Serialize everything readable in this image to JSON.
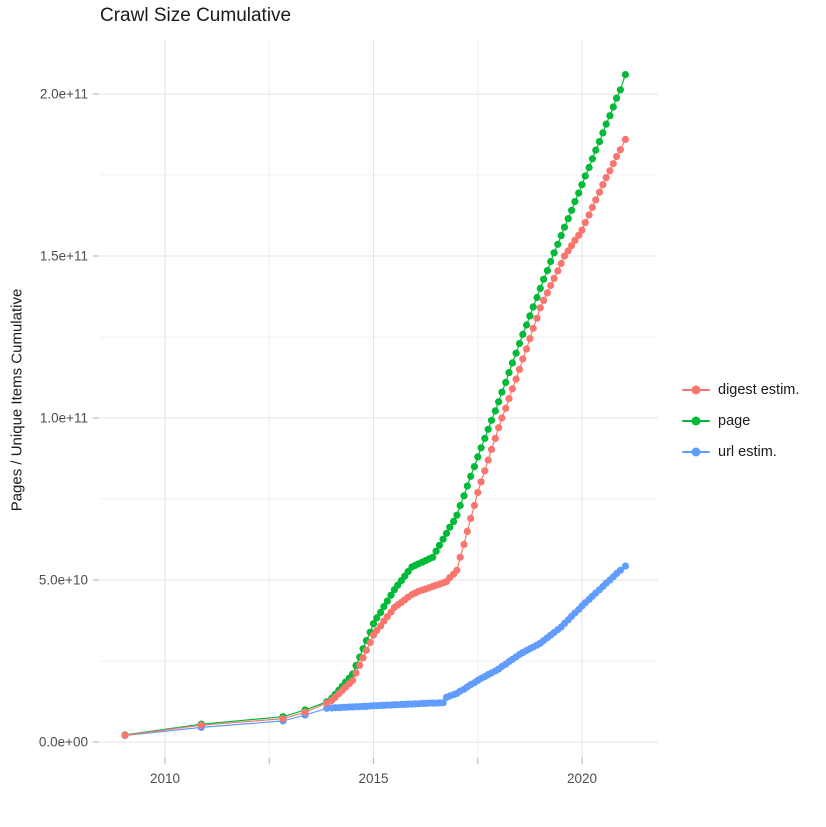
{
  "title": "Crawl Size Cumulative",
  "y_axis": {
    "title": "Pages / Unique Items Cumulative",
    "tick_labels": [
      "0.0e+00",
      "5.0e+10",
      "1.0e+11",
      "1.5e+11",
      "2.0e+11"
    ],
    "tick_values_e9": [
      0,
      50,
      100,
      150,
      200
    ],
    "minor_values_e9": [
      25,
      75,
      125,
      175
    ]
  },
  "x_axis": {
    "tick_labels": [
      "2010",
      "2015",
      "2020"
    ],
    "tick_values": [
      2010,
      2015,
      2020
    ],
    "minor_values": [
      2012.5,
      2017.5
    ]
  },
  "legend": {
    "items": [
      {
        "label": "digest estim.",
        "color": "#F8766D"
      },
      {
        "label": "page",
        "color": "#00BA38"
      },
      {
        "label": "url estim.",
        "color": "#619CFF"
      }
    ]
  },
  "style_colors": {
    "grid_major": "#E3E3E3",
    "grid_minor": "#F0F0F0",
    "tick_mark": "#BEBEBE",
    "tick_label": "#4D4D4D",
    "text": "#1A1A1A"
  },
  "chart_data": {
    "type": "line",
    "title": "Crawl Size Cumulative",
    "xlabel": "",
    "ylabel": "Pages / Unique Items Cumulative",
    "x_unit": "year",
    "y_unit": "count (values in billions, 1e9)",
    "xlim": [
      2008.4,
      2021.8
    ],
    "ylim_e9": [
      -5,
      216
    ],
    "grid": true,
    "legend_position": "right",
    "series": [
      {
        "name": "url estim.",
        "color": "#619CFF",
        "points": [
          [
            2009.04,
            2.0
          ],
          [
            2010.87,
            4.5
          ],
          [
            2012.83,
            6.5
          ],
          [
            2013.36,
            8.3
          ],
          [
            2013.88,
            10.4
          ],
          [
            2014.0,
            10.5
          ],
          [
            2014.08,
            10.6
          ],
          [
            2014.17,
            10.6
          ],
          [
            2014.25,
            10.7
          ],
          [
            2014.33,
            10.7
          ],
          [
            2014.42,
            10.8
          ],
          [
            2014.5,
            10.8
          ],
          [
            2014.58,
            10.9
          ],
          [
            2014.67,
            10.9
          ],
          [
            2014.75,
            11.0
          ],
          [
            2014.83,
            11.0
          ],
          [
            2014.92,
            11.1
          ],
          [
            2015.0,
            11.2
          ],
          [
            2015.08,
            11.2
          ],
          [
            2015.17,
            11.3
          ],
          [
            2015.25,
            11.3
          ],
          [
            2015.33,
            11.4
          ],
          [
            2015.42,
            11.4
          ],
          [
            2015.5,
            11.5
          ],
          [
            2015.58,
            11.5
          ],
          [
            2015.67,
            11.6
          ],
          [
            2015.75,
            11.6
          ],
          [
            2015.83,
            11.7
          ],
          [
            2015.92,
            11.7
          ],
          [
            2016.0,
            11.8
          ],
          [
            2016.08,
            11.8
          ],
          [
            2016.17,
            11.9
          ],
          [
            2016.25,
            11.9
          ],
          [
            2016.33,
            12.0
          ],
          [
            2016.42,
            12.0
          ],
          [
            2016.5,
            12.0
          ],
          [
            2016.58,
            12.1
          ],
          [
            2016.67,
            12.1
          ],
          [
            2016.75,
            13.8
          ],
          [
            2016.83,
            14.2
          ],
          [
            2016.92,
            14.6
          ],
          [
            2017.0,
            15.0
          ],
          [
            2017.08,
            15.7
          ],
          [
            2017.17,
            16.3
          ],
          [
            2017.25,
            17.0
          ],
          [
            2017.33,
            17.7
          ],
          [
            2017.42,
            18.3
          ],
          [
            2017.5,
            19.0
          ],
          [
            2017.58,
            19.6
          ],
          [
            2017.67,
            20.2
          ],
          [
            2017.75,
            20.8
          ],
          [
            2017.83,
            21.3
          ],
          [
            2017.92,
            21.9
          ],
          [
            2018.0,
            22.5
          ],
          [
            2018.08,
            23.3
          ],
          [
            2018.17,
            24.0
          ],
          [
            2018.25,
            24.8
          ],
          [
            2018.33,
            25.5
          ],
          [
            2018.42,
            26.3
          ],
          [
            2018.5,
            27.0
          ],
          [
            2018.58,
            27.6
          ],
          [
            2018.67,
            28.2
          ],
          [
            2018.75,
            28.8
          ],
          [
            2018.83,
            29.3
          ],
          [
            2018.92,
            29.9
          ],
          [
            2019.0,
            30.5
          ],
          [
            2019.08,
            31.3
          ],
          [
            2019.17,
            32.2
          ],
          [
            2019.25,
            33.0
          ],
          [
            2019.33,
            33.8
          ],
          [
            2019.42,
            34.7
          ],
          [
            2019.5,
            35.5
          ],
          [
            2019.58,
            36.6
          ],
          [
            2019.67,
            37.7
          ],
          [
            2019.75,
            38.8
          ],
          [
            2019.83,
            39.8
          ],
          [
            2019.92,
            40.9
          ],
          [
            2020.0,
            42.0
          ],
          [
            2020.08,
            43.0
          ],
          [
            2020.17,
            44.0
          ],
          [
            2020.25,
            45.0
          ],
          [
            2020.33,
            46.0
          ],
          [
            2020.42,
            47.0
          ],
          [
            2020.5,
            48.0
          ],
          [
            2020.58,
            49.0
          ],
          [
            2020.67,
            50.0
          ],
          [
            2020.75,
            51.0
          ],
          [
            2020.83,
            52.0
          ],
          [
            2020.92,
            53.0
          ],
          [
            2021.04,
            54.3
          ]
        ]
      },
      {
        "name": "page",
        "color": "#00BA38",
        "points": [
          [
            2009.04,
            2.2
          ],
          [
            2010.87,
            5.5
          ],
          [
            2012.83,
            7.8
          ],
          [
            2013.36,
            9.9
          ],
          [
            2013.88,
            12.4
          ],
          [
            2014.0,
            13.5
          ],
          [
            2014.08,
            14.7
          ],
          [
            2014.17,
            16.0
          ],
          [
            2014.25,
            17.2
          ],
          [
            2014.33,
            18.5
          ],
          [
            2014.42,
            19.7
          ],
          [
            2014.5,
            21.0
          ],
          [
            2014.58,
            23.6
          ],
          [
            2014.67,
            26.2
          ],
          [
            2014.75,
            28.8
          ],
          [
            2014.83,
            31.3
          ],
          [
            2014.92,
            33.9
          ],
          [
            2015.0,
            36.5
          ],
          [
            2015.08,
            38.3
          ],
          [
            2015.17,
            40.0
          ],
          [
            2015.25,
            41.8
          ],
          [
            2015.33,
            43.5
          ],
          [
            2015.42,
            45.3
          ],
          [
            2015.5,
            47.0
          ],
          [
            2015.58,
            48.4
          ],
          [
            2015.67,
            49.8
          ],
          [
            2015.75,
            51.2
          ],
          [
            2015.83,
            52.6
          ],
          [
            2015.92,
            54.0
          ],
          [
            2016.0,
            54.5
          ],
          [
            2016.08,
            55.0
          ],
          [
            2016.17,
            55.5
          ],
          [
            2016.25,
            56.0
          ],
          [
            2016.33,
            56.5
          ],
          [
            2016.42,
            57.0
          ],
          [
            2016.5,
            58.9
          ],
          [
            2016.58,
            60.7
          ],
          [
            2016.67,
            62.6
          ],
          [
            2016.75,
            64.4
          ],
          [
            2016.83,
            66.3
          ],
          [
            2016.92,
            68.1
          ],
          [
            2017.0,
            70.0
          ],
          [
            2017.08,
            73.0
          ],
          [
            2017.17,
            76.0
          ],
          [
            2017.25,
            79.0
          ],
          [
            2017.33,
            82.0
          ],
          [
            2017.42,
            85.0
          ],
          [
            2017.5,
            88.0
          ],
          [
            2017.58,
            90.8
          ],
          [
            2017.67,
            93.7
          ],
          [
            2017.75,
            96.5
          ],
          [
            2017.83,
            99.3
          ],
          [
            2017.92,
            102.2
          ],
          [
            2018.0,
            105.0
          ],
          [
            2018.08,
            108.0
          ],
          [
            2018.17,
            111.0
          ],
          [
            2018.25,
            114.0
          ],
          [
            2018.33,
            117.0
          ],
          [
            2018.42,
            120.0
          ],
          [
            2018.5,
            123.0
          ],
          [
            2018.58,
            125.8
          ],
          [
            2018.67,
            128.7
          ],
          [
            2018.75,
            131.5
          ],
          [
            2018.83,
            134.3
          ],
          [
            2018.92,
            137.2
          ],
          [
            2019.0,
            140.0
          ],
          [
            2019.08,
            142.8
          ],
          [
            2019.17,
            145.5
          ],
          [
            2019.25,
            148.3
          ],
          [
            2019.33,
            151.0
          ],
          [
            2019.42,
            153.6
          ],
          [
            2019.5,
            156.3
          ],
          [
            2019.58,
            158.9
          ],
          [
            2019.67,
            161.5
          ],
          [
            2019.75,
            164.1
          ],
          [
            2019.83,
            166.8
          ],
          [
            2019.92,
            169.4
          ],
          [
            2020.0,
            172.0
          ],
          [
            2020.08,
            174.7
          ],
          [
            2020.17,
            177.3
          ],
          [
            2020.25,
            180.0
          ],
          [
            2020.33,
            182.7
          ],
          [
            2020.42,
            185.3
          ],
          [
            2020.5,
            188.0
          ],
          [
            2020.58,
            190.7
          ],
          [
            2020.67,
            193.3
          ],
          [
            2020.75,
            196.0
          ],
          [
            2020.83,
            198.7
          ],
          [
            2020.92,
            201.3
          ],
          [
            2021.04,
            206.0
          ]
        ]
      },
      {
        "name": "digest estim.",
        "color": "#F8766D",
        "points": [
          [
            2009.04,
            2.1
          ],
          [
            2010.87,
            5.2
          ],
          [
            2012.83,
            7.2
          ],
          [
            2013.36,
            9.2
          ],
          [
            2013.88,
            12.0
          ],
          [
            2014.0,
            12.8
          ],
          [
            2014.08,
            13.8
          ],
          [
            2014.17,
            14.9
          ],
          [
            2014.25,
            15.9
          ],
          [
            2014.33,
            16.9
          ],
          [
            2014.42,
            18.0
          ],
          [
            2014.5,
            19.0
          ],
          [
            2014.58,
            21.3
          ],
          [
            2014.67,
            23.7
          ],
          [
            2014.75,
            26.0
          ],
          [
            2014.83,
            28.3
          ],
          [
            2014.92,
            30.7
          ],
          [
            2015.0,
            33.0
          ],
          [
            2015.08,
            34.4
          ],
          [
            2015.17,
            35.8
          ],
          [
            2015.25,
            37.3
          ],
          [
            2015.33,
            38.7
          ],
          [
            2015.42,
            40.1
          ],
          [
            2015.5,
            41.5
          ],
          [
            2015.58,
            42.3
          ],
          [
            2015.67,
            43.1
          ],
          [
            2015.75,
            43.9
          ],
          [
            2015.83,
            44.7
          ],
          [
            2015.92,
            45.5
          ],
          [
            2016.0,
            46.0
          ],
          [
            2016.08,
            46.5
          ],
          [
            2016.17,
            46.9
          ],
          [
            2016.25,
            47.2
          ],
          [
            2016.33,
            47.6
          ],
          [
            2016.42,
            48.0
          ],
          [
            2016.5,
            48.4
          ],
          [
            2016.58,
            48.7
          ],
          [
            2016.67,
            49.1
          ],
          [
            2016.75,
            49.5
          ],
          [
            2016.83,
            50.7
          ],
          [
            2016.92,
            51.8
          ],
          [
            2017.0,
            53.0
          ],
          [
            2017.08,
            57.0
          ],
          [
            2017.17,
            61.0
          ],
          [
            2017.25,
            65.0
          ],
          [
            2017.33,
            69.0
          ],
          [
            2017.42,
            73.0
          ],
          [
            2017.5,
            77.0
          ],
          [
            2017.58,
            80.3
          ],
          [
            2017.67,
            83.7
          ],
          [
            2017.75,
            87.0
          ],
          [
            2017.83,
            90.3
          ],
          [
            2017.92,
            93.7
          ],
          [
            2018.0,
            97.0
          ],
          [
            2018.08,
            100.0
          ],
          [
            2018.17,
            103.0
          ],
          [
            2018.25,
            106.0
          ],
          [
            2018.33,
            109.0
          ],
          [
            2018.42,
            112.0
          ],
          [
            2018.5,
            115.0
          ],
          [
            2018.58,
            118.2
          ],
          [
            2018.67,
            121.3
          ],
          [
            2018.75,
            124.5
          ],
          [
            2018.83,
            127.7
          ],
          [
            2018.92,
            130.8
          ],
          [
            2019.0,
            134.0
          ],
          [
            2019.08,
            136.3
          ],
          [
            2019.17,
            138.6
          ],
          [
            2019.25,
            140.9
          ],
          [
            2019.33,
            143.1
          ],
          [
            2019.42,
            145.4
          ],
          [
            2019.5,
            147.7
          ],
          [
            2019.58,
            150.0
          ],
          [
            2019.67,
            151.6
          ],
          [
            2019.75,
            153.2
          ],
          [
            2019.83,
            154.8
          ],
          [
            2019.92,
            156.4
          ],
          [
            2020.0,
            158.0
          ],
          [
            2020.08,
            160.3
          ],
          [
            2020.17,
            162.7
          ],
          [
            2020.25,
            165.0
          ],
          [
            2020.33,
            167.3
          ],
          [
            2020.42,
            169.7
          ],
          [
            2020.5,
            172.0
          ],
          [
            2020.58,
            174.2
          ],
          [
            2020.67,
            176.3
          ],
          [
            2020.75,
            178.5
          ],
          [
            2020.83,
            180.7
          ],
          [
            2020.92,
            182.8
          ],
          [
            2021.04,
            186.0
          ]
        ]
      }
    ]
  }
}
